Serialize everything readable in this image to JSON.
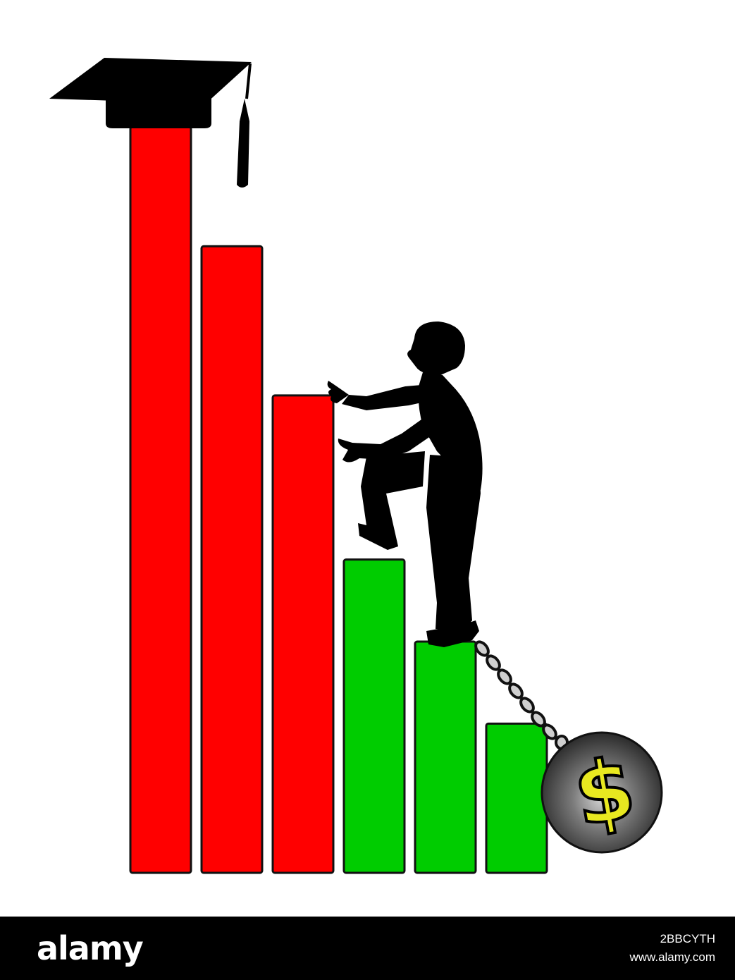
{
  "illustration": {
    "colors": {
      "red_bar": "#ff0000",
      "green_bar": "#00cc00",
      "outline": "#111111",
      "silhouette": "#000000",
      "ball": "#3a3a3a",
      "dollar": "#e8e820"
    },
    "bars": [
      {
        "color": "red",
        "level": 1.0
      },
      {
        "color": "red",
        "level": 0.84
      },
      {
        "color": "red",
        "level": 0.64
      },
      {
        "color": "green",
        "level": 0.42
      },
      {
        "color": "green",
        "level": 0.31
      },
      {
        "color": "green",
        "level": 0.2
      }
    ],
    "icons": [
      "graduation-cap-icon",
      "climbing-child-silhouette",
      "chain-icon",
      "ball-and-chain-icon",
      "dollar-sign-icon"
    ],
    "dollar_symbol": "$",
    "watermark_letter": "a"
  },
  "footer": {
    "logo": "alamy",
    "image_id": "2BBCYTH",
    "site": "www.alamy.com"
  }
}
